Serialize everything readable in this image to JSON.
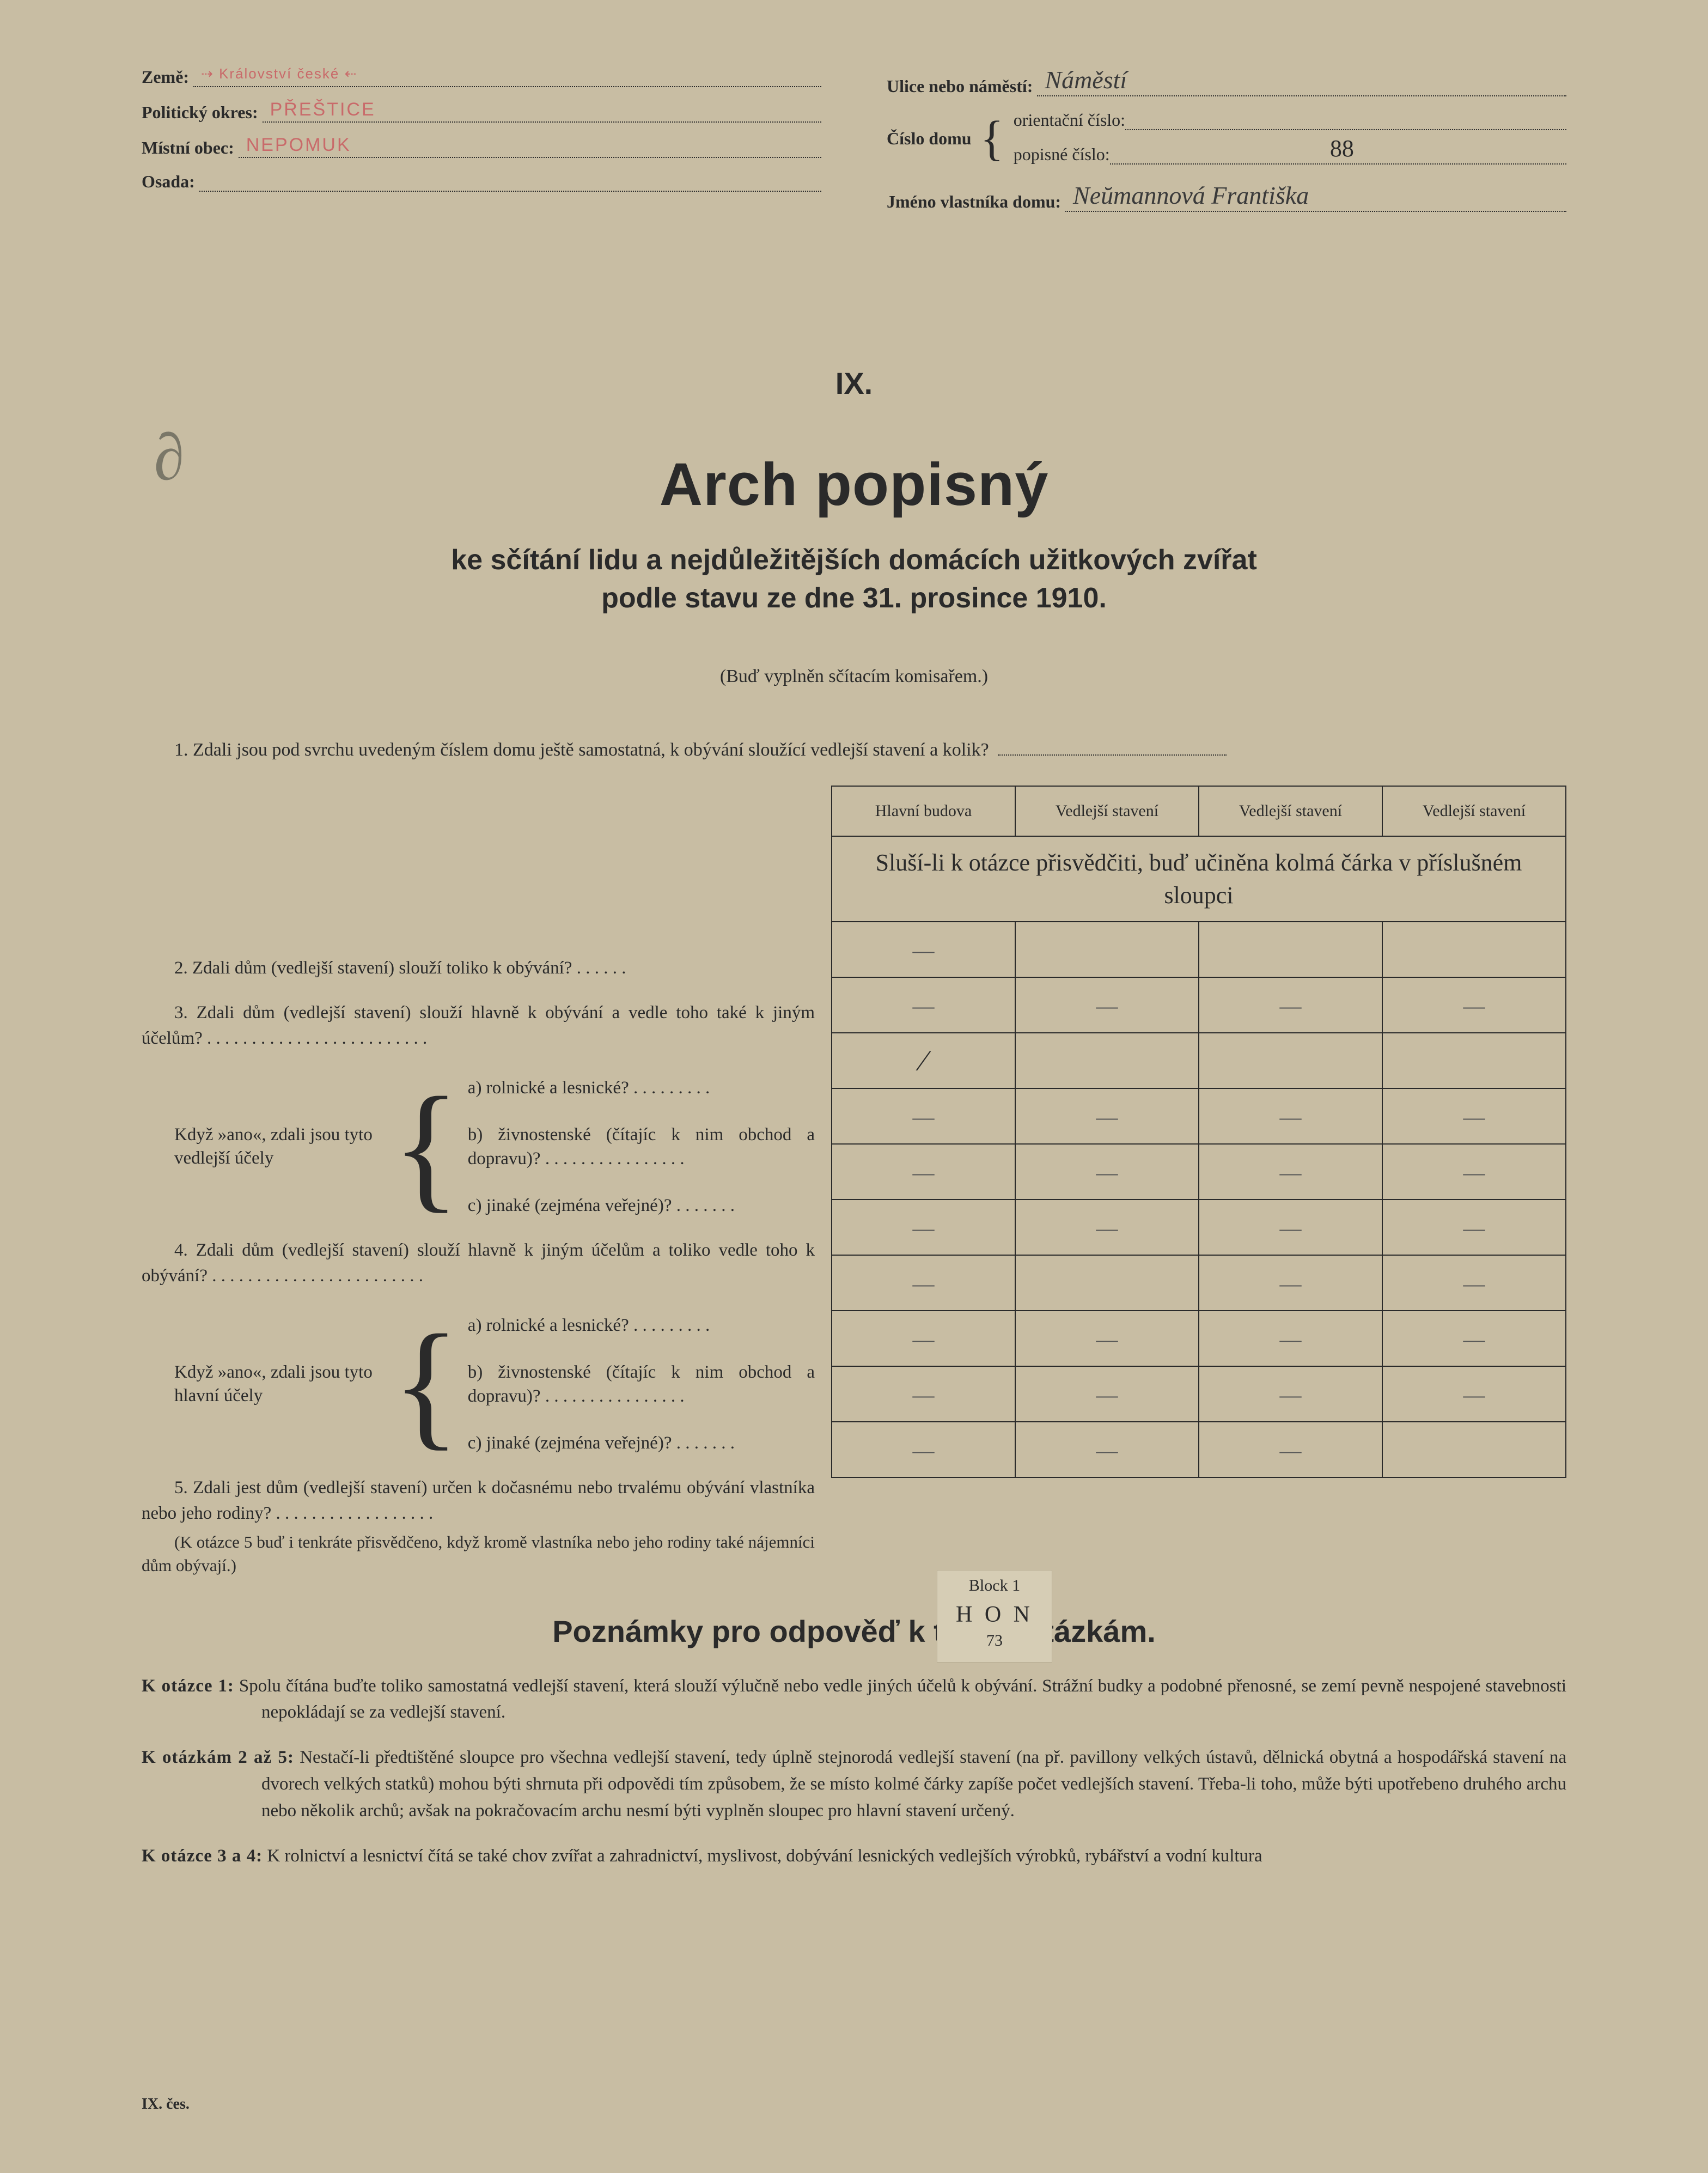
{
  "header": {
    "left": {
      "zeme_label": "Země:",
      "zeme_value": "⇢ Království české ⇠",
      "okres_label": "Politický okres:",
      "okres_value": "PŘEŠTICE",
      "obec_label": "Místní obec:",
      "obec_value": "NEPOMUK",
      "osada_label": "Osada:",
      "osada_value": ""
    },
    "right": {
      "ulice_label": "Ulice nebo náměstí:",
      "ulice_value": "Náměstí",
      "cislo_domu_label": "Číslo domu",
      "orientacni_label": "orientační číslo:",
      "orientacni_value": "",
      "popisne_label": "popisné číslo:",
      "popisne_value": "88",
      "vlastnik_label": "Jméno vlastníka domu:",
      "vlastnik_value": "Neŭmannová Františka"
    }
  },
  "doodle": "∂",
  "roman": "IX.",
  "title": "Arch popisný",
  "subtitle_l1": "ke sčítání lidu a nejdůležitějších domácích užitkových zvířat",
  "subtitle_l2": "podle stavu ze dne 31. prosince 1910.",
  "instruction": "(Buď vyplněn sčítacím komisařem.)",
  "q1": "1. Zdali jsou pod svrchu uvedeným číslem domu ještě samostatná, k obývání sloužící vedlejší stavení a kolik?",
  "table": {
    "cols": [
      "Hlavní budova",
      "Vedlejší stavení",
      "Vedlejší stavení",
      "Vedlejší stavení"
    ],
    "subhead": "Sluší-li k otázce přisvědčiti, buď učiněna kolmá čárka v příslušném sloupci",
    "rows": [
      [
        "—",
        "",
        "",
        ""
      ],
      [
        "—",
        "—",
        "—",
        "—"
      ],
      [
        "∕",
        "",
        "",
        ""
      ],
      [
        "—",
        "—",
        "—",
        "—"
      ],
      [
        "—",
        "—",
        "—",
        "—"
      ],
      [
        "—",
        "—",
        "—",
        "—"
      ],
      [
        "—",
        "",
        "—",
        "—"
      ],
      [
        "—",
        "—",
        "—",
        "—"
      ],
      [
        "—",
        "—",
        "—",
        "—"
      ],
      [
        "—",
        "—",
        "—",
        ""
      ]
    ]
  },
  "questions": {
    "q2": "2. Zdali dům (vedlejší stavení) slouží toliko k obývání? . . . . . .",
    "q3": "3. Zdali dům (vedlejší stavení) slouží hlavně k obývání a vedle toho také k jiným účelům? . . . . . . . . . . . . . . . . . . . . . . . . .",
    "sub1_lead": "Když »ano«, zdali jsou tyto vedlejší účely",
    "sub_a": "a) rolnické a lesnické? . . . . . . . . .",
    "sub_b": "b) živnostenské (čítajíc k nim obchod a dopravu)? . . . . . . . . . . . . . . . .",
    "sub_c": "c) jinaké (zejména veřejné)? . . . . . . .",
    "q4": "4. Zdali dům (vedlejší stavení) slouží hlavně k jiným účelům a toliko vedle toho k obývání? . . . . . . . . . . . . . . . . . . . . . . . .",
    "sub2_lead": "Když »ano«, zdali jsou tyto hlavní účely",
    "q5": "5. Zdali jest dům (vedlejší stavení) určen k dočasnému nebo trvalému obývání vlastníka nebo jeho rodiny? . . . . . . . . . . . . . . . . . .",
    "q5_note": "(K otázce 5 buď i tenkráte přisvědčeno, když kromě vlastníka nebo jeho rodiny také nájemníci dům obývají.)"
  },
  "block": {
    "l1": "Block 1",
    "l2": "H O N",
    "l3": "73"
  },
  "notes_title": "Poznámky pro odpověď k těmto otázkám.",
  "notes": {
    "n1_lead": "K otázce 1:",
    "n1": " Spolu čítána buďte toliko samostatná vedlejší stavení, která slouží výlučně nebo vedle jiných účelů k obývání. Strážní budky a podobné přenosné, se zemí pevně nespojené stavebnosti nepokládají se za vedlejší stavení.",
    "n2_lead": "K otázkám 2 až 5:",
    "n2": " Nestačí-li předtištěné sloupce pro všechna vedlejší stavení, tedy úplně stejnorodá vedlejší stavení (na př. pavillony velkých ústavů, dělnická obytná a hospodářská stavení na dvorech velkých statků) mohou býti shrnuta při odpovědi tím způsobem, že se místo kolmé čárky zapíše počet vedlejších stavení. Třeba-li toho, může býti upotřebeno druhého archu nebo několik archů; avšak na pokračovacím archu nesmí býti vyplněn sloupec pro hlavní stavení určený.",
    "n3_lead": "K otázce 3 a 4:",
    "n3": " K rolnictví a lesnictví čítá se také chov zvířat a zahradnictví, myslivost, dobývání lesnických vedlejších výrobků, rybářství a vodní kultura"
  },
  "footer": "IX. čes."
}
